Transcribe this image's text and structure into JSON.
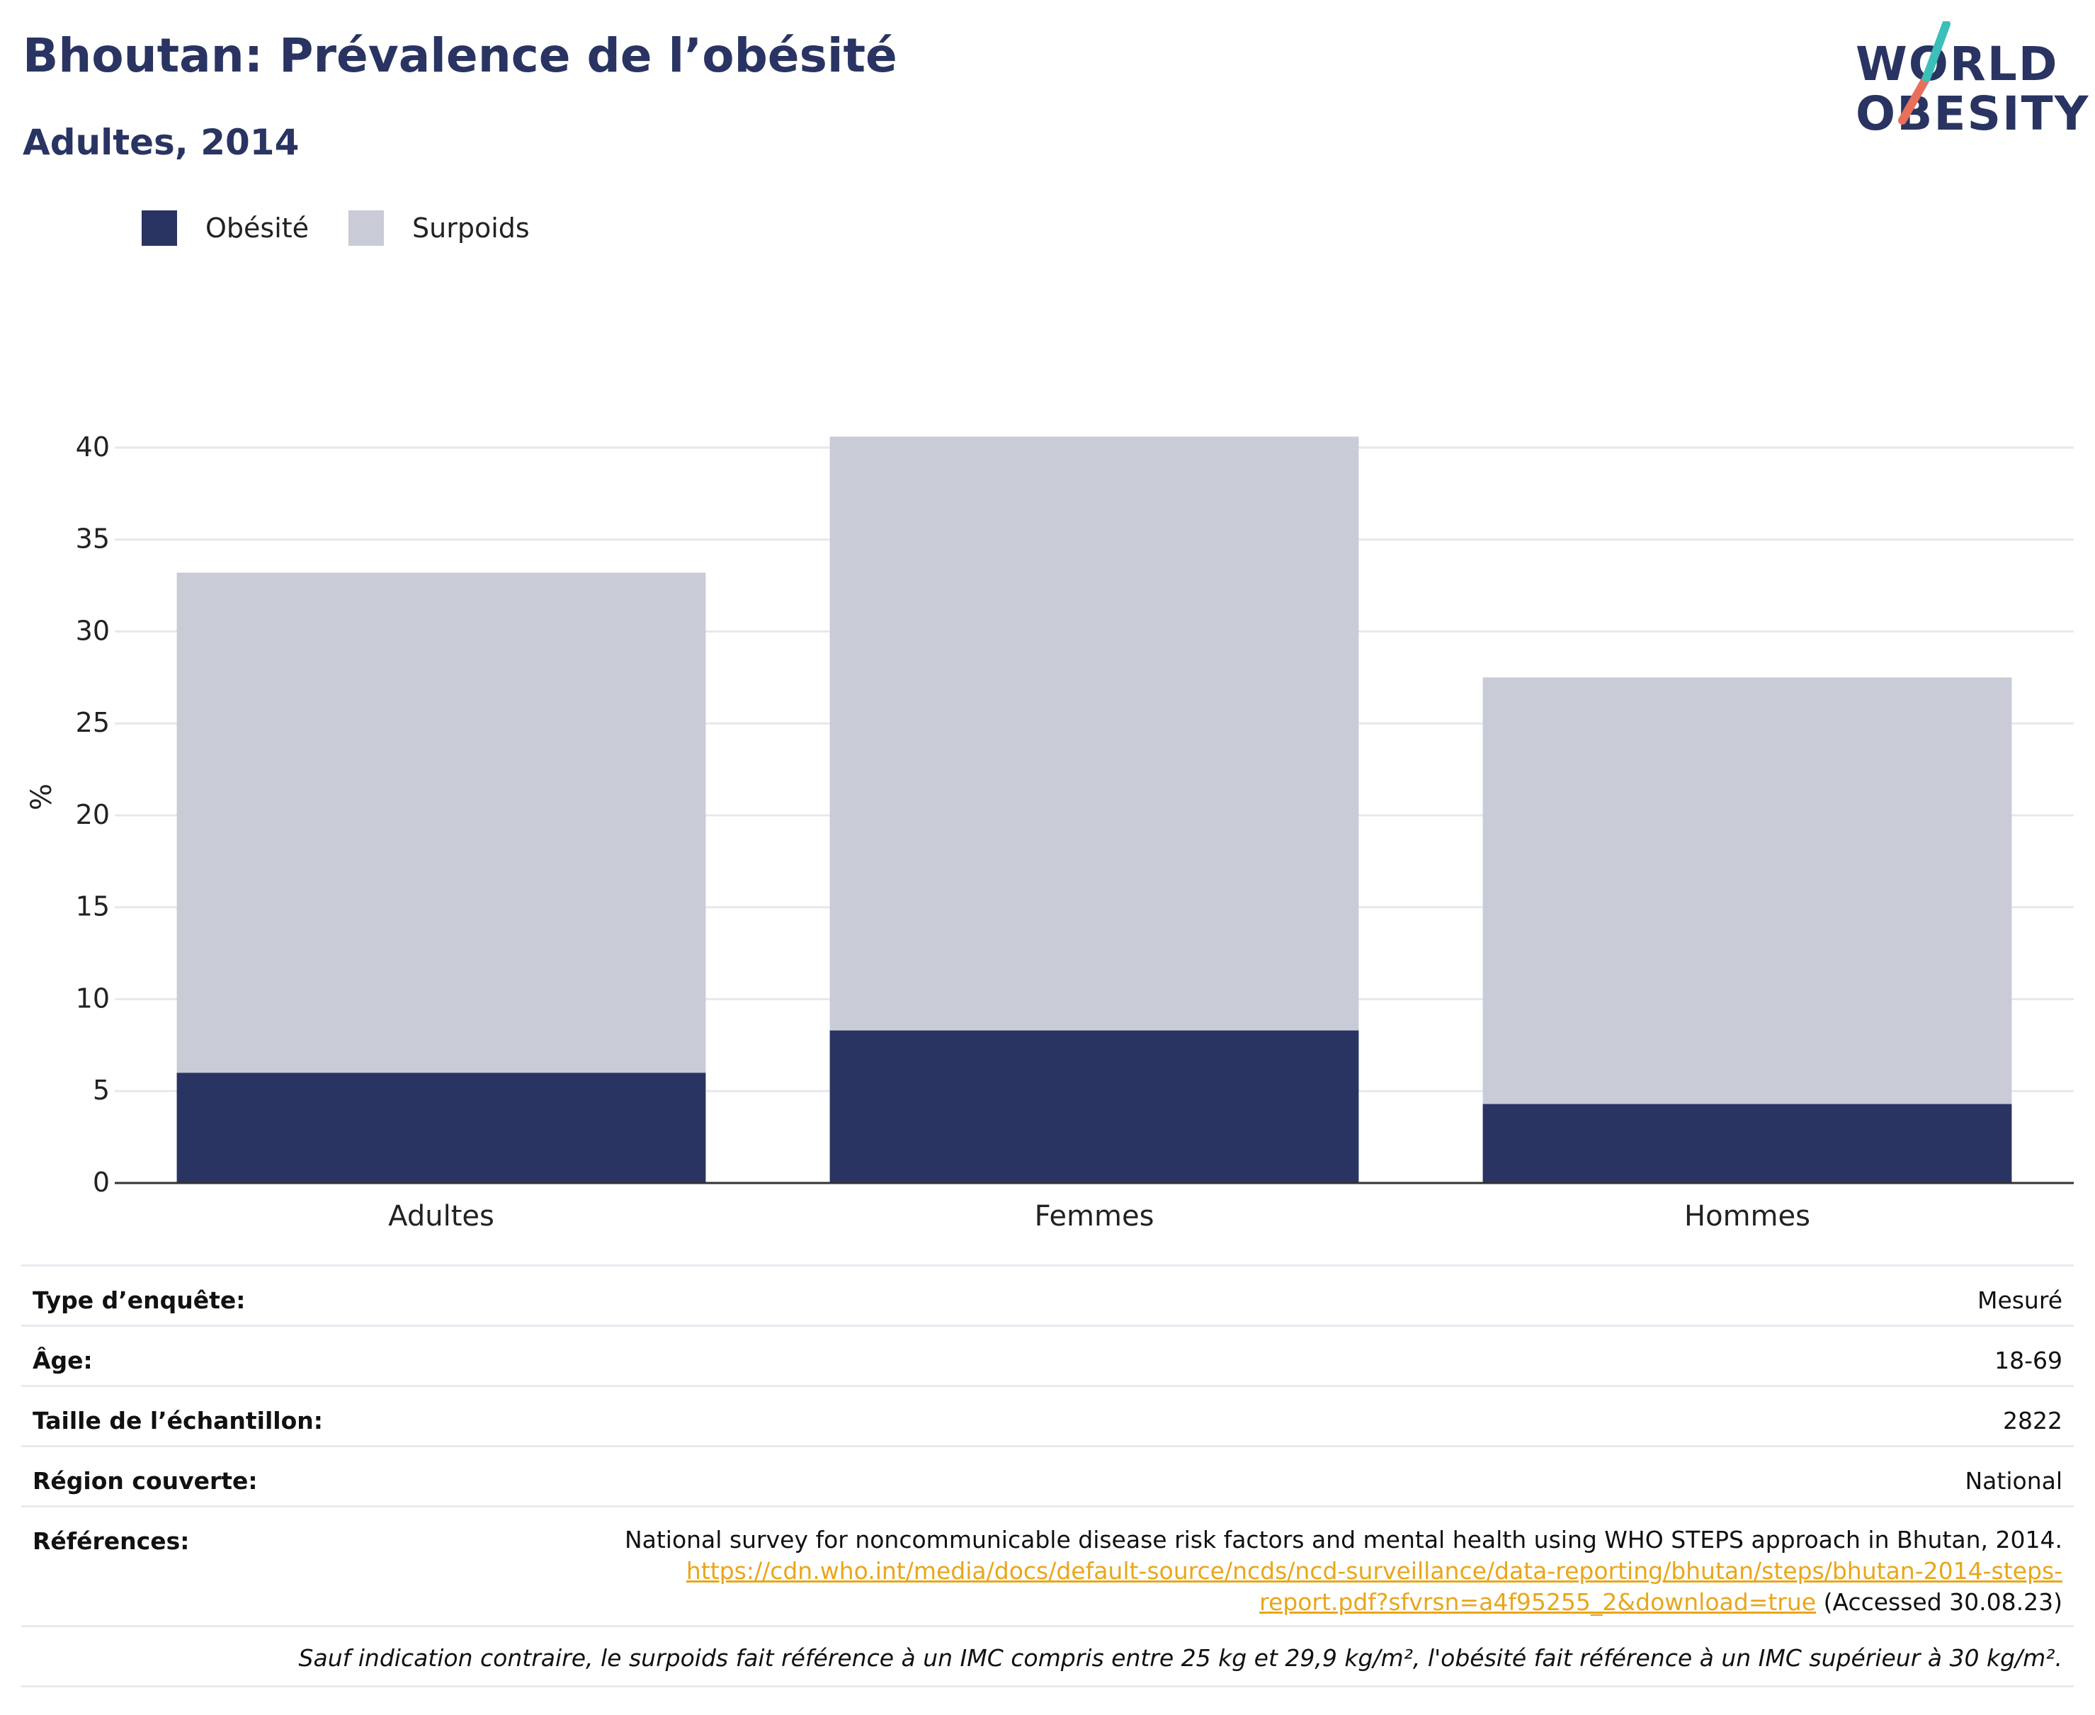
{
  "title": "Bhoutan: Prévalence de l’obésité",
  "subtitle": "Adultes, 2014",
  "logo": {
    "line1": "WORLD",
    "line2": "OBESITY",
    "accent1": "#3cbfb8",
    "accent2": "#e8705a"
  },
  "colors": {
    "obesity": "#293462",
    "overweight": "#c9cbd7",
    "title": "#293462",
    "link": "#e9a61a"
  },
  "chart_data": {
    "type": "bar",
    "stacked": true,
    "categories": [
      "Adultes",
      "Femmes",
      "Hommes"
    ],
    "series": [
      {
        "name": "Obésité",
        "values": [
          6.0,
          8.3,
          4.3
        ],
        "color": "#293462"
      },
      {
        "name": "Surpoids",
        "values": [
          27.2,
          32.3,
          23.2
        ],
        "color": "#c9cbd7"
      }
    ],
    "ylabel": "%",
    "ylim": [
      0,
      42
    ],
    "yticks": [
      0,
      5,
      10,
      15,
      20,
      25,
      30,
      35,
      40
    ],
    "grid": true,
    "legend_position": "top-left"
  },
  "meta": {
    "survey_type_label": "Type d’enquête:",
    "survey_type_value": "Mesuré",
    "age_label": "Âge:",
    "age_value": "18-69",
    "sample_label": "Taille de l’échantillon:",
    "sample_value": "2822",
    "region_label": "Région couverte:",
    "region_value": "National",
    "references_label": "Références:",
    "reference_text": "National survey for noncommunicable disease risk factors and mental health using WHO STEPS approach in Bhutan, 2014.",
    "reference_link_line1": "https://cdn.who.int/media/docs/default-source/ncds/ncd-surveillance/data-reporting/bhutan/steps/bhutan-2014-steps-",
    "reference_link_line2": "report.pdf?sfvrsn=a4f95255_2&download=true",
    "reference_accessed": " (Accessed 30.08.23)",
    "footnote": "Sauf indication contraire, le surpoids fait référence à un IMC compris entre 25 kg et 29,9 kg/m², l'obésité fait référence à un IMC supérieur à 30 kg/m²."
  }
}
